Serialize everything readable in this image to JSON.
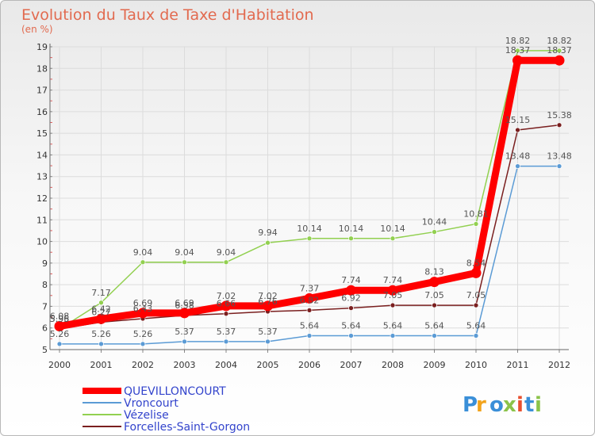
{
  "chart_data": {
    "type": "line",
    "title": "Evolution du Taux de Taxe d'Habitation",
    "subtitle": "(en %)",
    "x": [
      "2000",
      "2001",
      "2002",
      "2003",
      "2004",
      "2005",
      "2006",
      "2007",
      "2008",
      "2009",
      "2010",
      "2011",
      "2012"
    ],
    "ylim": [
      5,
      19
    ],
    "yticks": [
      "5",
      "6",
      "7",
      "8",
      "9",
      "10",
      "11",
      "12",
      "13",
      "14",
      "15",
      "16",
      "17",
      "18",
      "19"
    ],
    "series": [
      {
        "name": "QUEVILLONCOURT",
        "color": "#ff0000",
        "values": [
          6.08,
          6.42,
          6.69,
          6.69,
          7.02,
          7.02,
          7.37,
          7.74,
          7.74,
          8.13,
          8.54,
          18.37,
          18.37
        ],
        "labels": [
          "6.08",
          "6.42",
          "6.69",
          "6.69",
          "7.02",
          "7.02",
          "7.37",
          "7.74",
          "7.74",
          "8.13",
          "8.54",
          "18.37",
          "18.37"
        ]
      },
      {
        "name": "Vroncourt",
        "color": "#5b9bd5",
        "values": [
          5.26,
          5.26,
          5.26,
          5.37,
          5.37,
          5.37,
          5.64,
          5.64,
          5.64,
          5.64,
          5.64,
          13.48,
          13.48
        ],
        "labels": [
          "5.26",
          "5.26",
          "5.26",
          "5.37",
          "5.37",
          "5.37",
          "5.64",
          "5.64",
          "5.64",
          "5.64",
          "5.64",
          "13.48",
          "13.48"
        ]
      },
      {
        "name": "Vézelise",
        "color": "#92d050",
        "values": [
          5.95,
          7.17,
          9.04,
          9.04,
          9.04,
          9.94,
          10.14,
          10.14,
          10.14,
          10.44,
          10.81,
          18.82,
          18.82
        ],
        "labels": [
          "5.95",
          "7.17",
          "9.04",
          "9.04",
          "9.04",
          "9.94",
          "10.14",
          "10.14",
          "10.14",
          "10.44",
          "10.81",
          "18.82",
          "18.82"
        ]
      },
      {
        "name": "Forcelles-Saint-Gorgon",
        "color": "#7a1f1f",
        "values": [
          5.96,
          6.27,
          6.43,
          6.58,
          6.66,
          6.76,
          6.82,
          6.92,
          7.05,
          7.05,
          7.05,
          15.15,
          15.38
        ],
        "labels": [
          "5.96",
          "6.27",
          "6.43",
          "6.58",
          "6.66",
          "6.76",
          "6.82",
          "6.92",
          "7.05",
          "7.05",
          "7.05",
          "15.15",
          "15.38"
        ]
      }
    ]
  },
  "logo": {
    "text": "Proxiti",
    "letters": [
      {
        "ch": "P",
        "color": "#3a8fd8"
      },
      {
        "ch": "r",
        "color": "#f2a31b"
      },
      {
        "ch": "o",
        "color": "#3a8fd8"
      },
      {
        "ch": "x",
        "color": "#8bc34a"
      },
      {
        "ch": "i",
        "color": "#e8502f"
      },
      {
        "ch": "t",
        "color": "#3a8fd8"
      },
      {
        "ch": "i",
        "color": "#8bc34a"
      }
    ]
  }
}
